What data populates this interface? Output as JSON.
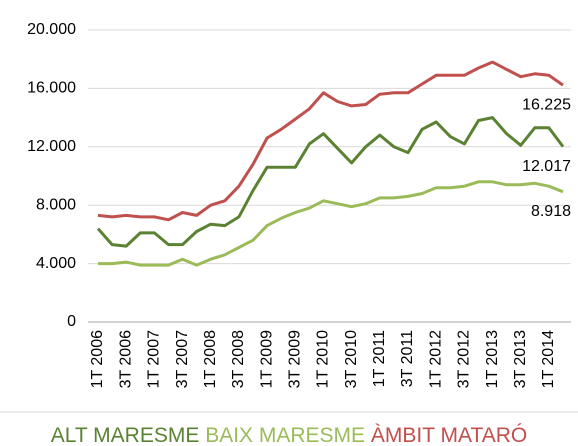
{
  "chart_data": {
    "type": "line",
    "categories": [
      "1T 2006",
      null,
      "3T 2006",
      null,
      "1T 2007",
      null,
      "3T 2007",
      null,
      "1T 2008",
      null,
      "3T 2008",
      null,
      "1T 2009",
      null,
      "3T 2009",
      null,
      "1T 2010",
      null,
      "3T 2010",
      null,
      "1T 2011",
      null,
      "3T 2011",
      null,
      "1T 2012",
      null,
      "3T 2012",
      null,
      "1T 2013",
      null,
      "3T 2013",
      null,
      "1T 2014",
      null
    ],
    "series": [
      {
        "name": "ALT MARESME",
        "color": "#5b8233",
        "values": [
          6400,
          5300,
          5200,
          6100,
          6100,
          5300,
          5300,
          6200,
          6700,
          6600,
          7200,
          9000,
          10600,
          10600,
          10600,
          12200,
          12900,
          11900,
          10900,
          12000,
          12800,
          12000,
          11600,
          13200,
          13700,
          12700,
          12200,
          13800,
          14000,
          12900,
          12100,
          13300,
          13300,
          12017
        ],
        "value_labels": [
          null,
          null,
          null,
          null,
          null,
          null,
          null,
          null,
          null,
          null,
          null,
          null,
          null,
          null,
          null,
          null,
          null,
          null,
          null,
          null,
          null,
          null,
          null,
          null,
          null,
          null,
          null,
          null,
          null,
          null,
          null,
          null,
          null,
          "12.017"
        ]
      },
      {
        "name": "BAIX MARESME",
        "color": "#9bbb59",
        "values": [
          4000,
          4000,
          4100,
          3900,
          3900,
          3900,
          4300,
          3900,
          4300,
          4600,
          5100,
          5600,
          6600,
          7100,
          7500,
          7800,
          8300,
          8100,
          7900,
          8100,
          8500,
          8500,
          8600,
          8800,
          9200,
          9200,
          9300,
          9600,
          9600,
          9400,
          9400,
          9500,
          9300,
          8918
        ],
        "value_labels": [
          null,
          null,
          null,
          null,
          null,
          null,
          null,
          null,
          null,
          null,
          null,
          null,
          null,
          null,
          null,
          null,
          null,
          null,
          null,
          null,
          null,
          null,
          null,
          null,
          null,
          null,
          null,
          null,
          null,
          null,
          null,
          null,
          null,
          "8.918"
        ]
      },
      {
        "name": "ÀMBIT MATARÓ",
        "color": "#c0504d",
        "values": [
          7300,
          7200,
          7300,
          7200,
          7200,
          7000,
          7500,
          7300,
          8000,
          8300,
          9300,
          10800,
          12600,
          13200,
          13900,
          14600,
          15700,
          15100,
          14800,
          14900,
          15600,
          15700,
          15700,
          16300,
          16900,
          16900,
          16900,
          17400,
          17800,
          17300,
          16800,
          17000,
          16900,
          16225
        ],
        "value_labels": [
          null,
          null,
          null,
          null,
          null,
          null,
          null,
          null,
          null,
          null,
          null,
          null,
          null,
          null,
          null,
          null,
          null,
          null,
          null,
          null,
          null,
          null,
          null,
          null,
          null,
          null,
          null,
          null,
          null,
          null,
          null,
          null,
          null,
          "16.225"
        ]
      }
    ],
    "ylim": [
      0,
      20000
    ],
    "yticks": [
      {
        "value": 0,
        "label": "0"
      },
      {
        "value": 4000,
        "label": "4.000"
      },
      {
        "value": 8000,
        "label": "8.000"
      },
      {
        "value": 12000,
        "label": "12.000"
      },
      {
        "value": 16000,
        "label": "16.000"
      },
      {
        "value": 20000,
        "label": "20.000"
      }
    ],
    "grid": true,
    "legend": "bottom"
  }
}
